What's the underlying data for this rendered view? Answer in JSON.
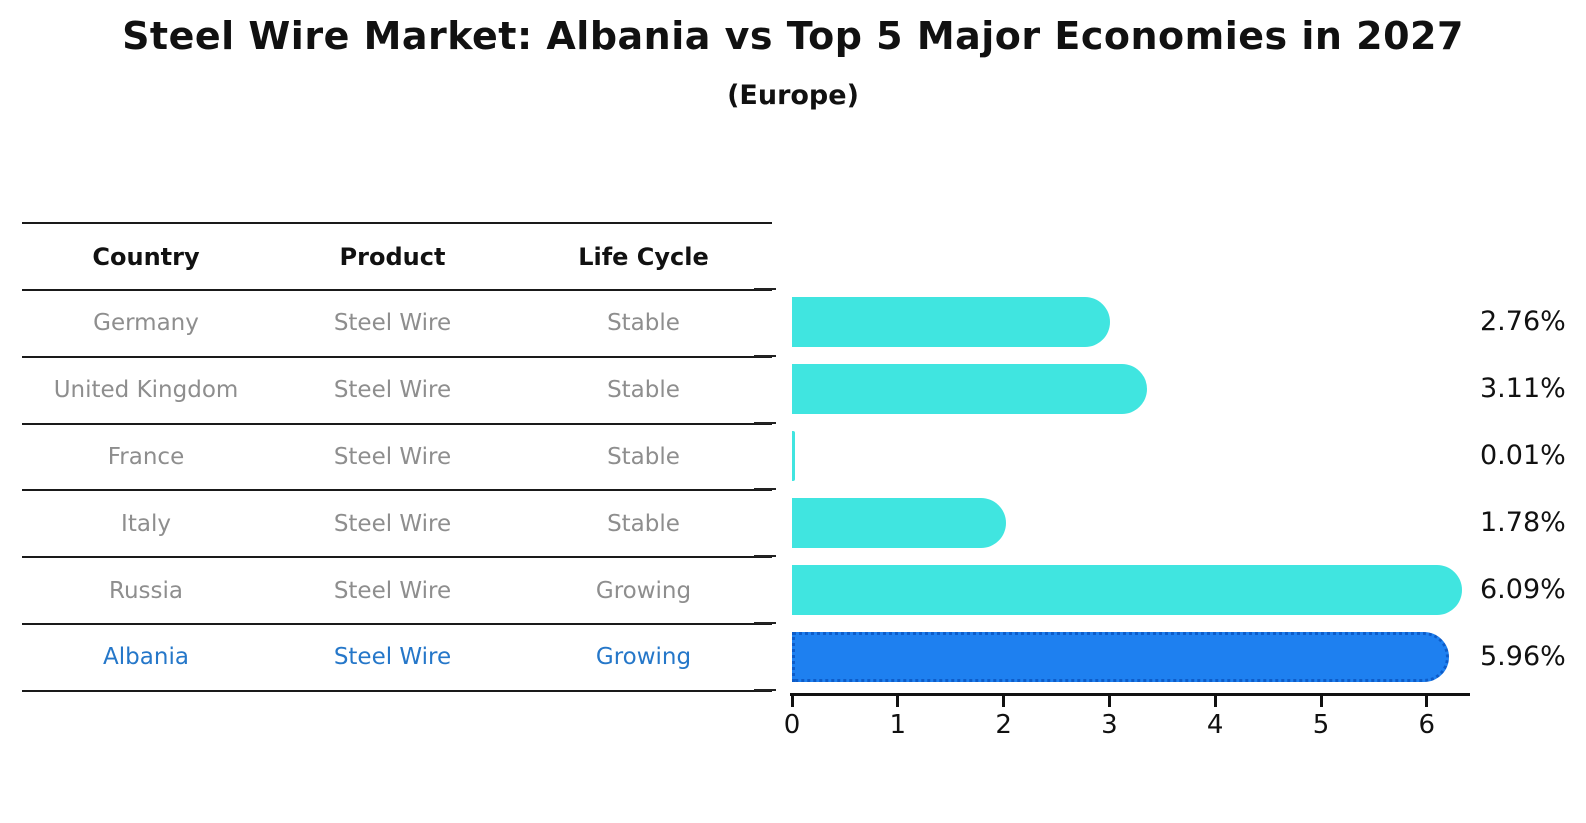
{
  "title": "Steel Wire Market: Albania vs Top 5 Major Economies in 2027",
  "subtitle": "(Europe)",
  "table": {
    "headers": [
      "Country",
      "Product",
      "Life Cycle"
    ],
    "rows": [
      {
        "country": "Germany",
        "product": "Steel Wire",
        "life_cycle": "Stable",
        "highlight": false
      },
      {
        "country": "United Kingdom",
        "product": "Steel Wire",
        "life_cycle": "Stable",
        "highlight": false
      },
      {
        "country": "France",
        "product": "Steel Wire",
        "life_cycle": "Stable",
        "highlight": false
      },
      {
        "country": "Italy",
        "product": "Steel Wire",
        "life_cycle": "Stable",
        "highlight": false
      },
      {
        "country": "Russia",
        "product": "Steel Wire",
        "life_cycle": "Growing",
        "highlight": false
      },
      {
        "country": "Albania",
        "product": "Steel Wire",
        "life_cycle": "Growing",
        "highlight": true
      }
    ]
  },
  "chart_data": {
    "type": "bar",
    "orientation": "horizontal",
    "title": "Steel Wire Market: Albania vs Top 5 Major Economies in 2027",
    "subtitle": "(Europe)",
    "categories": [
      "Germany",
      "United Kingdom",
      "France",
      "Italy",
      "Russia",
      "Albania"
    ],
    "values": [
      2.76,
      3.11,
      0.01,
      1.78,
      6.09,
      5.96
    ],
    "value_labels": [
      "2.76%",
      "3.11%",
      "0.01%",
      "1.78%",
      "6.09%",
      "5.96%"
    ],
    "x_ticks": [
      0,
      1,
      2,
      3,
      4,
      5,
      6
    ],
    "xlim": [
      0,
      6.5
    ],
    "grid": false,
    "legend": "none",
    "bar_color": "#40E5E0",
    "highlight_color": "#1E80F0",
    "highlight_index": 5
  },
  "colors": {
    "title_text": "#111111",
    "row_text": "#8e8e8e",
    "highlight_text": "#2577c9",
    "bar_cyan": "#40E5E0",
    "bar_blue": "#1E80F0",
    "bar_blue_border": "#0d5cc9",
    "axis": "#111111"
  }
}
